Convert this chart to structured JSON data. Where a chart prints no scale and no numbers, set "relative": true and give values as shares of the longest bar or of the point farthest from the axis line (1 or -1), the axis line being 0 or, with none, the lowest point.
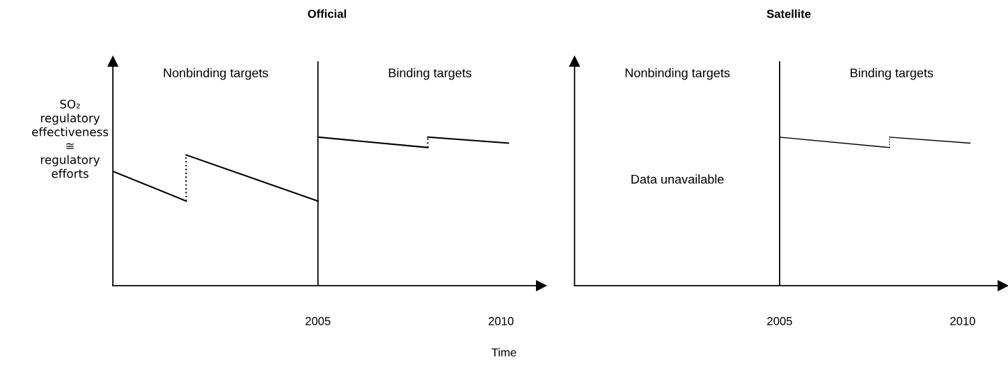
{
  "chart_data": [
    {
      "type": "line",
      "title": "Official",
      "ylabel": "SO₂\nregulatory\neffectiveness\n≅\nregulatory\nefforts",
      "xlabel": "Time",
      "relative": true,
      "xlim": [
        1999.4,
        2011.1
      ],
      "xticks": [
        2005,
        2010
      ],
      "tick_labels": "x",
      "grid": false,
      "series": [
        {
          "color": "#000000",
          "line_style": "solid",
          "x": [
            1999.4,
            2001.4
          ],
          "values": [
            0.77,
            0.57
          ]
        },
        {
          "color": "#000000",
          "line_style": "dotted",
          "x": [
            2001.4,
            2001.4
          ],
          "values": [
            0.57,
            0.88
          ]
        },
        {
          "color": "#000000",
          "line_style": "solid",
          "x": [
            2001.4,
            2005
          ],
          "values": [
            0.88,
            0.57
          ]
        },
        {
          "color": "#000000",
          "line_style": "solid",
          "x": [
            2005,
            2008
          ],
          "values": [
            1.0,
            0.93
          ]
        },
        {
          "color": "#000000",
          "line_style": "dotted",
          "x": [
            2008,
            2008
          ],
          "values": [
            0.93,
            1.0
          ]
        },
        {
          "color": "#000000",
          "line_style": "solid",
          "x": [
            2008,
            2010.2
          ],
          "values": [
            1.0,
            0.96
          ]
        }
      ],
      "ref_lines": [
        {
          "axis": "x",
          "value": 2005,
          "label": null,
          "color": "#000000",
          "line_style": "solid"
        }
      ],
      "annotations": [
        "Nonbinding targets",
        "Binding targets"
      ]
    },
    {
      "type": "line",
      "title": "Satellite",
      "relative": true,
      "xlim": [
        1999.4,
        2011.1
      ],
      "xticks": [
        2005,
        2010
      ],
      "tick_labels": "x",
      "grid": false,
      "series": [
        {
          "color": "#000000",
          "line_style": "solid",
          "x": [
            2005,
            2008
          ],
          "values": [
            1.0,
            0.93
          ]
        },
        {
          "color": "#000000",
          "line_style": "dotted",
          "x": [
            2008,
            2008
          ],
          "values": [
            0.93,
            1.0
          ]
        },
        {
          "color": "#000000",
          "line_style": "solid",
          "x": [
            2008,
            2010.2
          ],
          "values": [
            1.0,
            0.96
          ]
        }
      ],
      "ref_lines": [
        {
          "axis": "x",
          "value": 2005,
          "label": null,
          "color": "#000000",
          "line_style": "solid"
        }
      ],
      "annotations": [
        "Nonbinding targets",
        "Binding targets",
        "Data unavailable"
      ]
    }
  ]
}
